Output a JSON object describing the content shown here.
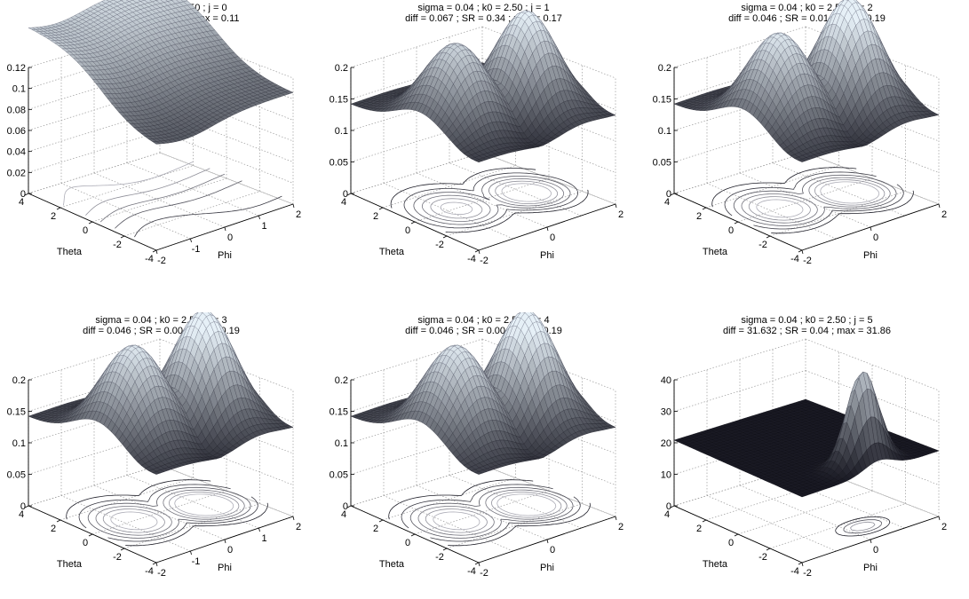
{
  "chart_data": [
    {
      "type": "surface",
      "title_line1": "sigma = 0.04 ; k0 = 2.50 ; j = 0",
      "title_line2": "diff = 0.145 ; SR = 0.38 ; max = 0.11",
      "xlabel": "Phi",
      "ylabel": "Theta",
      "zlim": [
        0,
        0.12
      ],
      "zticks": [
        "0",
        "0.02",
        "0.04",
        "0.06",
        "0.08",
        "0.1",
        "0.12"
      ],
      "phi_ticks": [
        "-2",
        "-1",
        "0",
        "1",
        "2"
      ],
      "theta_ticks": [
        "-4",
        "-2",
        "0",
        "2",
        "4"
      ],
      "peak": 0.11
    },
    {
      "type": "surface",
      "title_line1": "sigma = 0.04 ; k0 = 2.50 ; j = 1",
      "title_line2": "diff = 0.067 ; SR = 0.34 ; max = 0.17",
      "xlabel": "Phi",
      "ylabel": "Theta",
      "zlim": [
        0,
        0.2
      ],
      "zticks": [
        "0",
        "0.05",
        "0.1",
        "0.15",
        "0.2"
      ],
      "phi_ticks": [
        "-2",
        "0",
        "2"
      ],
      "theta_ticks": [
        "-4",
        "-2",
        "0",
        "2",
        "4"
      ],
      "peak": 0.17
    },
    {
      "type": "surface",
      "title_line1": "sigma = 0.04 ; k0 = 2.50 ; j = 2",
      "title_line2": "diff = 0.046 ; SR = 0.01 ; max = 0.19",
      "xlabel": "Phi",
      "ylabel": "Theta",
      "zlim": [
        0,
        0.2
      ],
      "zticks": [
        "0",
        "0.05",
        "0.1",
        "0.15",
        "0.2"
      ],
      "phi_ticks": [
        "-2",
        "0",
        "2"
      ],
      "theta_ticks": [
        "-4",
        "-2",
        "0",
        "2",
        "4"
      ],
      "peak": 0.19
    },
    {
      "type": "surface",
      "title_line1": "sigma = 0.04 ; k0 = 2.50 ; j = 3",
      "title_line2": "diff = 0.046 ; SR = 0.00 ; max = 0.19",
      "xlabel": "Phi",
      "ylabel": "Theta",
      "zlim": [
        0,
        0.2
      ],
      "zticks": [
        "0",
        "0.05",
        "0.1",
        "0.15",
        "0.2"
      ],
      "phi_ticks": [
        "-2",
        "-1",
        "0",
        "1",
        "2"
      ],
      "theta_ticks": [
        "-4",
        "-2",
        "0",
        "2",
        "4"
      ],
      "peak": 0.19
    },
    {
      "type": "surface",
      "title_line1": "sigma = 0.04 ; k0 = 2.50 ; j = 4",
      "title_line2": "diff = 0.046 ; SR = 0.00 ; max = 0.19",
      "xlabel": "Phi",
      "ylabel": "Theta",
      "zlim": [
        0,
        0.2
      ],
      "zticks": [
        "0",
        "0.05",
        "0.1",
        "0.15",
        "0.2"
      ],
      "phi_ticks": [
        "-2",
        "0",
        "2"
      ],
      "theta_ticks": [
        "-4",
        "-2",
        "0",
        "2",
        "4"
      ],
      "peak": 0.19
    },
    {
      "type": "surface",
      "title_line1": "sigma = 0.04 ; k0 = 2.50 ; j = 5",
      "title_line2": "diff = 31.632 ; SR = 0.04 ; max = 31.86",
      "xlabel": "Phi",
      "ylabel": "Theta",
      "zlim": [
        0,
        40
      ],
      "zticks": [
        "0",
        "10",
        "20",
        "30",
        "40"
      ],
      "phi_ticks": [
        "-2",
        "0",
        "2"
      ],
      "theta_ticks": [
        "-4",
        "-2",
        "0",
        "2",
        "4"
      ],
      "peak": 31.86
    }
  ]
}
